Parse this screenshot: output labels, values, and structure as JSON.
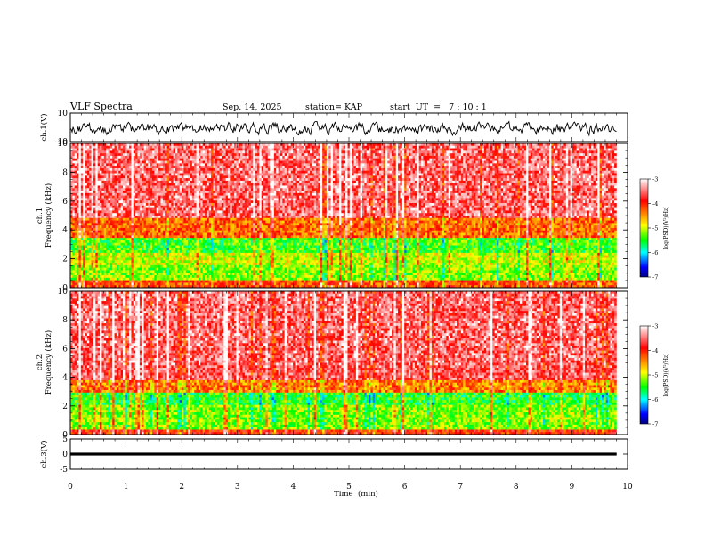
{
  "header": {
    "title": "VLF Spectra",
    "date": "Sep. 14, 2025",
    "station": "station= KAP",
    "start_ut": "start  UT  =   7 : 10 : 1"
  },
  "panels": {
    "ch1_wave_label": "ch.1(V)",
    "ch1_spec_label_a": "ch.1",
    "ch1_spec_label_b": "Frequency  (kHz)",
    "ch2_spec_label_a": "ch.2",
    "ch2_spec_label_b": "Frequency  (kHz)",
    "ch3_wave_label": "ch.3(V)",
    "x_label": "Time  (min)",
    "colorbar_label": "log(PSD)(V²/Hz)"
  },
  "colors": {
    "white": "#ffffff",
    "red": "#ff0000",
    "orange": "#ff8000",
    "yellow": "#ffff00",
    "green": "#00ff00",
    "cyan": "#00ffff",
    "blue": "#0000ff",
    "navy": "#000080"
  },
  "chart_data": [
    {
      "type": "line",
      "name": "ch.1 waveform",
      "ylabel": "ch.1(V)",
      "xlim": [
        0,
        10
      ],
      "ylim": [
        -10,
        10
      ],
      "y_ticks": [
        10,
        -10
      ],
      "x_extent_min": 9.8,
      "amplitude_range": [
        -6,
        4
      ]
    },
    {
      "type": "heatmap",
      "name": "ch.1 spectrogram",
      "ylabel": "Frequency  (kHz)",
      "xlim": [
        0,
        10
      ],
      "ylim": [
        0,
        10
      ],
      "y_ticks": [
        0,
        2,
        4,
        6,
        8,
        10
      ],
      "x_extent_min": 9.8,
      "bands_khz": [
        {
          "from": 0,
          "to": 0.6,
          "level": -4.2
        },
        {
          "from": 0.6,
          "to": 1.5,
          "level": -5.2
        },
        {
          "from": 1.5,
          "to": 2.5,
          "level": -5.0
        },
        {
          "from": 2.5,
          "to": 3.5,
          "level": -5.4
        },
        {
          "from": 3.5,
          "to": 4.8,
          "level": -4.3
        },
        {
          "from": 4.8,
          "to": 10,
          "level": -3.6
        }
      ],
      "colorbar": {
        "label": "log(PSD)(V²/Hz)",
        "range": [
          -7,
          -3
        ],
        "ticks": [
          -3,
          -4,
          -5,
          -6,
          -7
        ]
      }
    },
    {
      "type": "heatmap",
      "name": "ch.2 spectrogram",
      "ylabel": "Frequency  (kHz)",
      "xlim": [
        0,
        10
      ],
      "ylim": [
        0,
        10
      ],
      "y_ticks": [
        0,
        2,
        4,
        6,
        8,
        10
      ],
      "x_extent_min": 9.8,
      "bands_khz": [
        {
          "from": 0,
          "to": 0.4,
          "level": -4.0
        },
        {
          "from": 0.4,
          "to": 2.0,
          "level": -5.2
        },
        {
          "from": 2.0,
          "to": 3.0,
          "level": -5.5
        },
        {
          "from": 3.0,
          "to": 3.8,
          "level": -4.4
        },
        {
          "from": 3.8,
          "to": 10,
          "level": -3.6
        }
      ],
      "colorbar": {
        "label": "log(PSD)(V²/Hz)",
        "range": [
          -7,
          -3
        ],
        "ticks": [
          -3,
          -4,
          -5,
          -6,
          -7
        ]
      }
    },
    {
      "type": "line",
      "name": "ch.3 waveform",
      "ylabel": "ch.3(V)",
      "xlabel": "Time  (min)",
      "xlim": [
        0,
        10
      ],
      "ylim": [
        -5,
        5
      ],
      "y_ticks": [
        5,
        0,
        -5
      ],
      "x_ticks": [
        0,
        1,
        2,
        3,
        4,
        5,
        6,
        7,
        8,
        9,
        10
      ],
      "x_extent_min": 9.8,
      "amplitude_range": [
        -0.4,
        0.4
      ]
    }
  ]
}
